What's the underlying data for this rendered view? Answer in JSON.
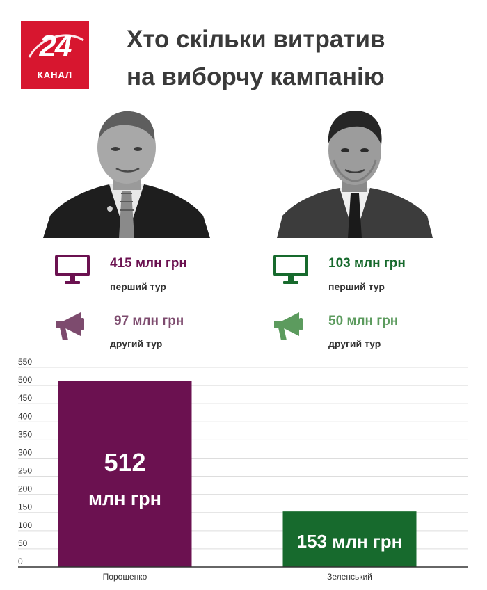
{
  "brand": {
    "number": "24",
    "word": "КАНАЛ"
  },
  "title": {
    "line1": "Хто скільки витратив",
    "line2": "на виборчу кампанію"
  },
  "candidates": [
    {
      "name": "Порошенко",
      "first_round_value": "415 млн грн",
      "first_round_label": "перший тур",
      "second_round_value": "97 млн грн",
      "second_round_label": "другий тур",
      "color_first": "#6b1150",
      "color_second": "#7d4b6e"
    },
    {
      "name": "Зеленський",
      "first_round_value": "103 млн грн",
      "first_round_label": "перший тур",
      "second_round_value": "50 млн грн",
      "second_round_label": "другий тур",
      "color_first": "#176a2d",
      "color_second": "#5c9b5e"
    }
  ],
  "chart_data": {
    "type": "bar",
    "categories": [
      "Порошенко",
      "Зеленський"
    ],
    "values": [
      512,
      153
    ],
    "value_labels": [
      [
        "512",
        "млн грн"
      ],
      [
        "153 млн грн"
      ]
    ],
    "colors": [
      "#6b1150",
      "#176a2d"
    ],
    "ylim": [
      0,
      550
    ],
    "yticks": [
      0,
      50,
      100,
      150,
      200,
      250,
      300,
      350,
      400,
      450,
      500,
      550
    ],
    "grid": true,
    "xlabel": "",
    "ylabel": ""
  }
}
